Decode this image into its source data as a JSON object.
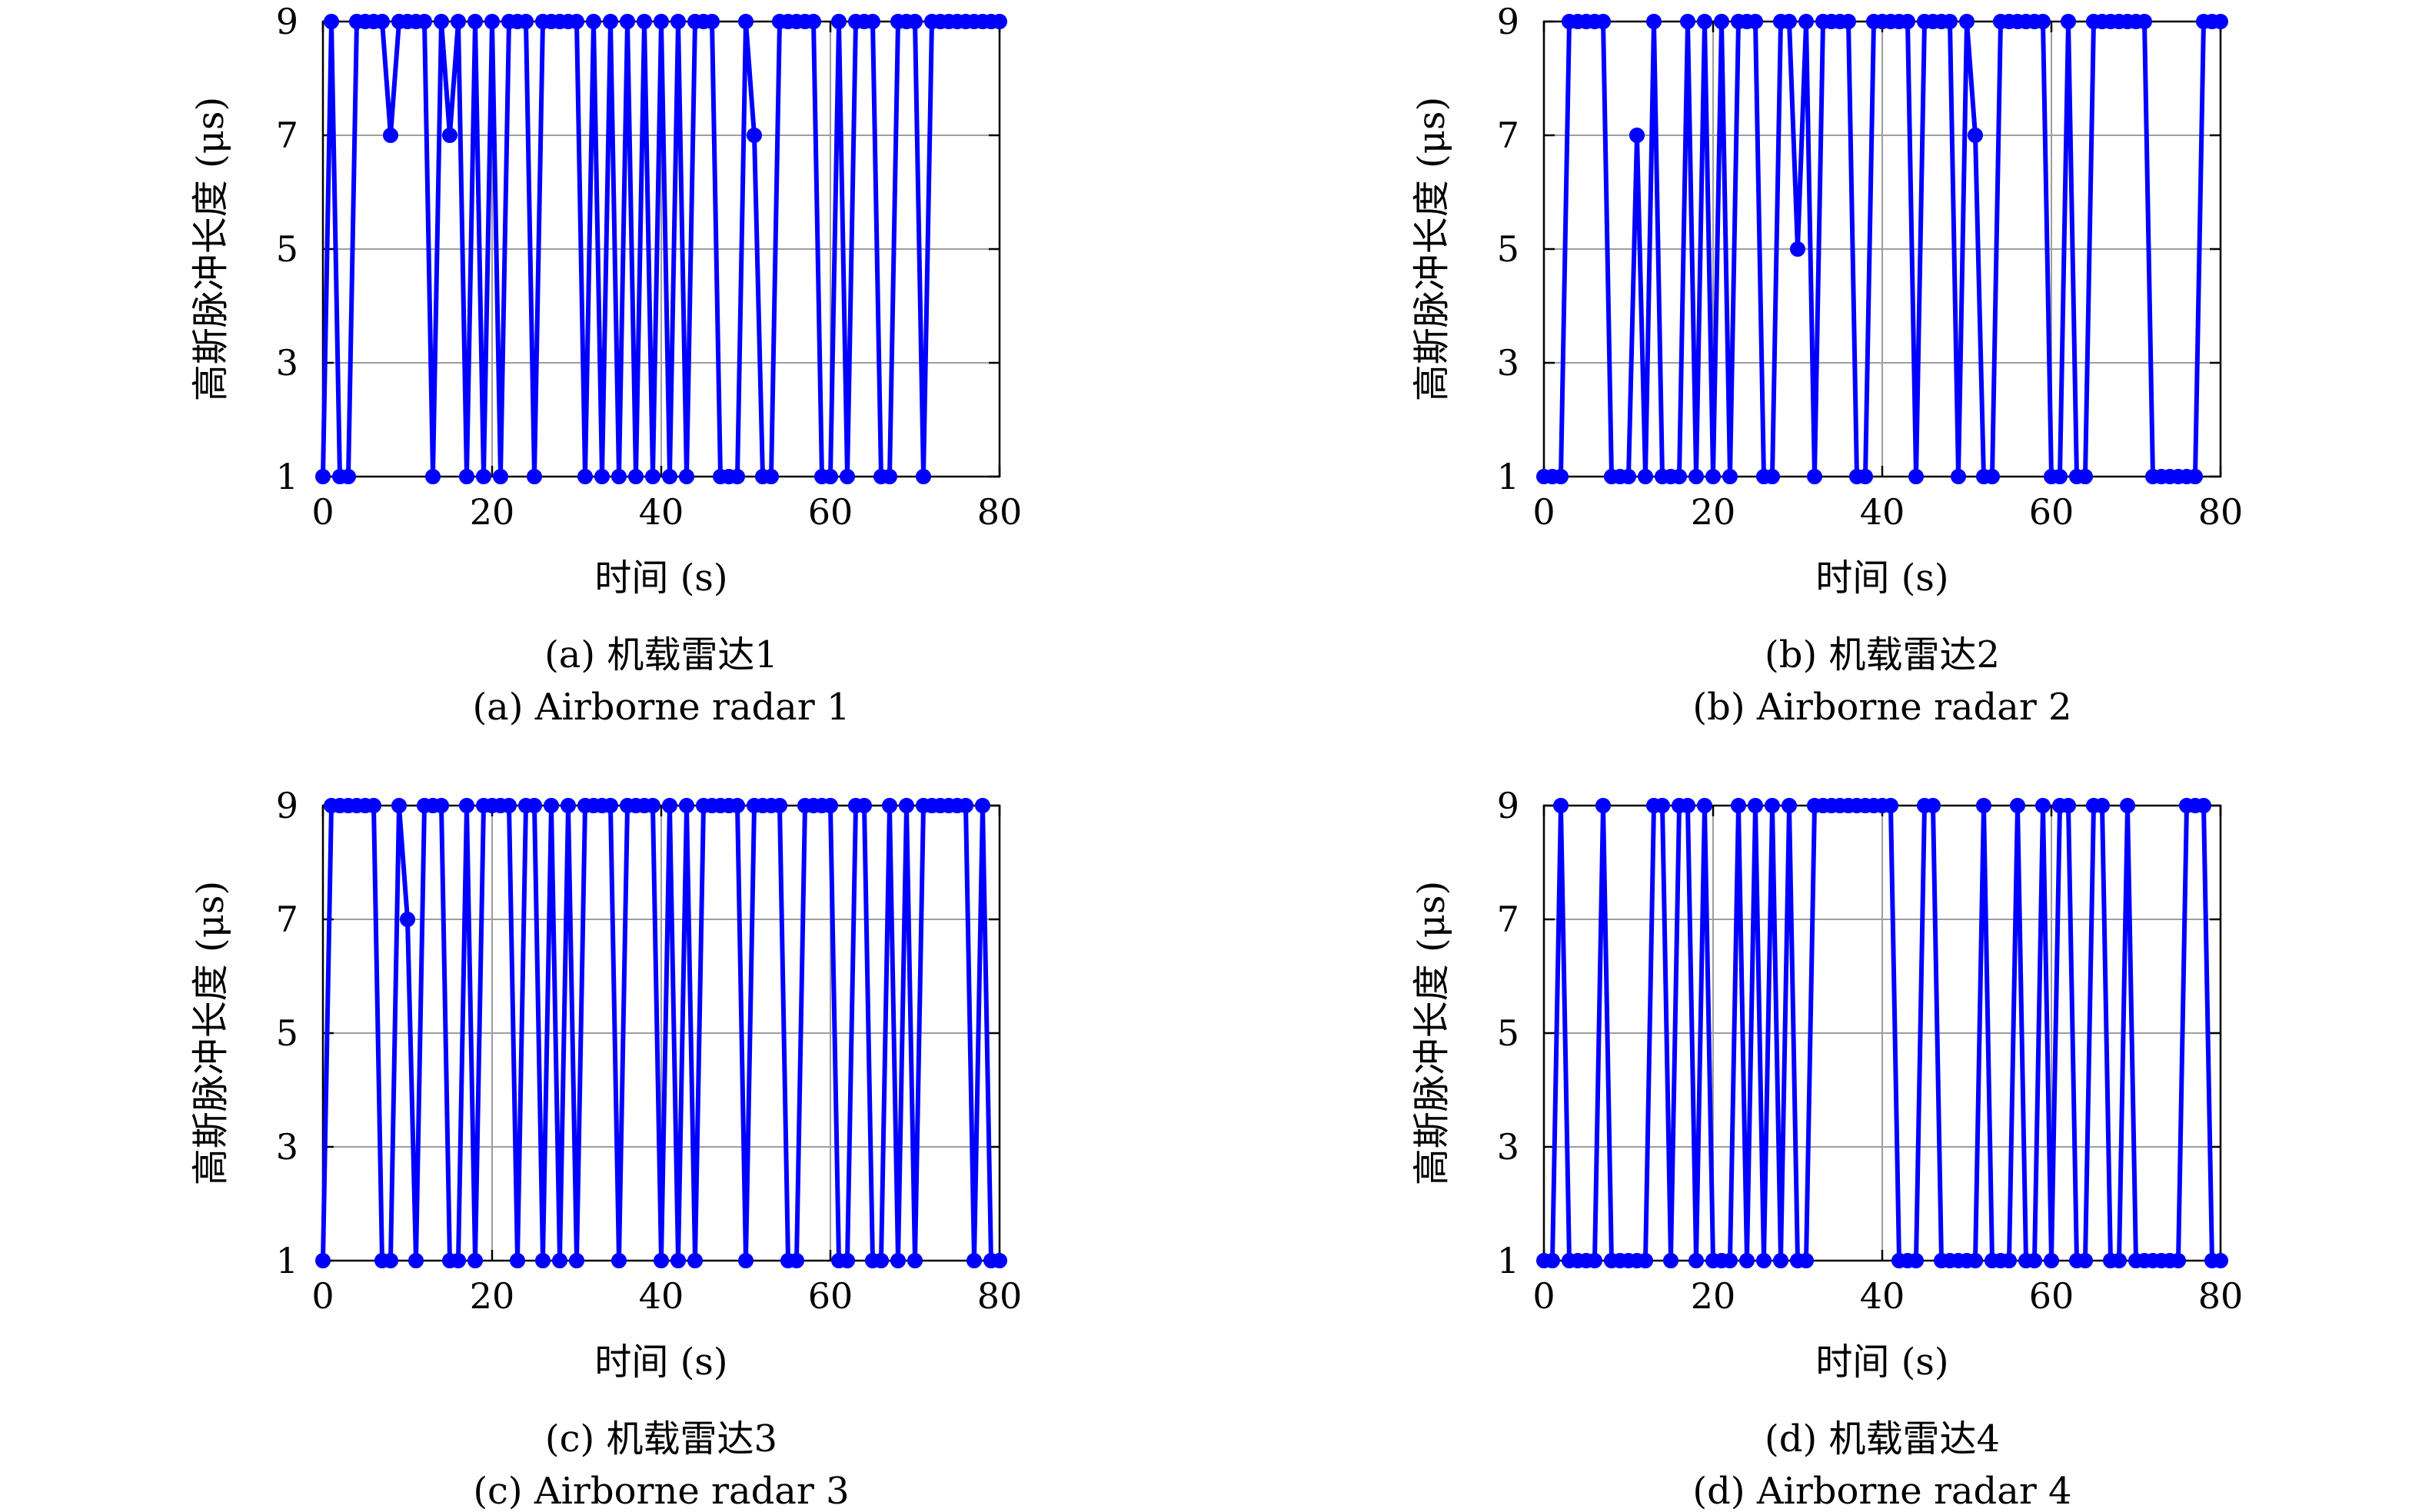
{
  "chart_data": [
    {
      "type": "line",
      "caption_cn": "(a) 机载雷达1",
      "caption_en": "(a) Airborne radar 1",
      "xlabel": "时间 (s)",
      "ylabel": "高斯脉冲长度 (μs)",
      "xlim": [
        0,
        80
      ],
      "ylim": [
        1,
        9
      ],
      "xticks": [
        "0",
        "20",
        "40",
        "60",
        "80"
      ],
      "yticks": [
        "1",
        "3",
        "5",
        "7",
        "9"
      ],
      "grid": true,
      "series": [
        {
          "color": "#0000ff",
          "x": [
            0,
            1,
            2,
            3,
            4,
            5,
            6,
            7,
            8,
            9,
            10,
            11,
            12,
            13,
            14,
            15,
            16,
            17,
            18,
            19,
            20,
            21,
            22,
            23,
            24,
            25,
            26,
            27,
            28,
            29,
            30,
            31,
            32,
            33,
            34,
            35,
            36,
            37,
            38,
            39,
            40,
            41,
            42,
            43,
            44,
            45,
            46,
            47,
            48,
            49,
            50,
            51,
            52,
            53,
            54,
            55,
            56,
            57,
            58,
            59,
            60,
            61,
            62,
            63,
            64,
            65,
            66,
            67,
            68,
            69,
            70,
            71,
            72,
            73,
            74,
            75,
            76,
            77,
            78,
            79,
            80
          ],
          "y": [
            1,
            9,
            1,
            1,
            9,
            9,
            9,
            9,
            7,
            9,
            9,
            9,
            9,
            1,
            9,
            7,
            9,
            1,
            9,
            1,
            9,
            1,
            9,
            9,
            9,
            1,
            9,
            9,
            9,
            9,
            9,
            1,
            9,
            1,
            9,
            1,
            9,
            1,
            9,
            1,
            9,
            1,
            9,
            1,
            9,
            9,
            9,
            1,
            1,
            1,
            9,
            7,
            1,
            1,
            9,
            9,
            9,
            9,
            9,
            1,
            1,
            9,
            1,
            9,
            9,
            9,
            1,
            1,
            9,
            9,
            9,
            1,
            9,
            9,
            9,
            9,
            9,
            9,
            9,
            9,
            9
          ]
        }
      ]
    },
    {
      "type": "line",
      "caption_cn": "(b) 机载雷达2",
      "caption_en": "(b) Airborne radar 2",
      "xlabel": "时间 (s)",
      "ylabel": "高斯脉冲长度 (μs)",
      "xlim": [
        0,
        80
      ],
      "ylim": [
        1,
        9
      ],
      "xticks": [
        "0",
        "20",
        "40",
        "60",
        "80"
      ],
      "yticks": [
        "1",
        "3",
        "5",
        "7",
        "9"
      ],
      "grid": true,
      "series": [
        {
          "color": "#0000ff",
          "x": [
            0,
            1,
            2,
            3,
            4,
            5,
            6,
            7,
            8,
            9,
            10,
            11,
            12,
            13,
            14,
            15,
            16,
            17,
            18,
            19,
            20,
            21,
            22,
            23,
            24,
            25,
            26,
            27,
            28,
            29,
            30,
            31,
            32,
            33,
            34,
            35,
            36,
            37,
            38,
            39,
            40,
            41,
            42,
            43,
            44,
            45,
            46,
            47,
            48,
            49,
            50,
            51,
            52,
            53,
            54,
            55,
            56,
            57,
            58,
            59,
            60,
            61,
            62,
            63,
            64,
            65,
            66,
            67,
            68,
            69,
            70,
            71,
            72,
            73,
            74,
            75,
            76,
            77,
            78,
            79,
            80
          ],
          "y": [
            1,
            1,
            1,
            9,
            9,
            9,
            9,
            9,
            1,
            1,
            1,
            7,
            1,
            9,
            1,
            1,
            1,
            9,
            1,
            9,
            1,
            9,
            1,
            9,
            9,
            9,
            1,
            1,
            9,
            9,
            5,
            9,
            1,
            9,
            9,
            9,
            9,
            1,
            1,
            9,
            9,
            9,
            9,
            9,
            1,
            9,
            9,
            9,
            9,
            1,
            9,
            7,
            1,
            1,
            9,
            9,
            9,
            9,
            9,
            9,
            1,
            1,
            9,
            1,
            1,
            9,
            9,
            9,
            9,
            9,
            9,
            9,
            1,
            1,
            1,
            1,
            1,
            1,
            9,
            9,
            9
          ]
        }
      ]
    },
    {
      "type": "line",
      "caption_cn": "(c) 机载雷达3",
      "caption_en": "(c) Airborne radar 3",
      "xlabel": "时间 (s)",
      "ylabel": "高斯脉冲长度 (μs)",
      "xlim": [
        0,
        80
      ],
      "ylim": [
        1,
        9
      ],
      "xticks": [
        "0",
        "20",
        "40",
        "60",
        "80"
      ],
      "yticks": [
        "1",
        "3",
        "5",
        "7",
        "9"
      ],
      "grid": true,
      "series": [
        {
          "color": "#0000ff",
          "x": [
            0,
            1,
            2,
            3,
            4,
            5,
            6,
            7,
            8,
            9,
            10,
            11,
            12,
            13,
            14,
            15,
            16,
            17,
            18,
            19,
            20,
            21,
            22,
            23,
            24,
            25,
            26,
            27,
            28,
            29,
            30,
            31,
            32,
            33,
            34,
            35,
            36,
            37,
            38,
            39,
            40,
            41,
            42,
            43,
            44,
            45,
            46,
            47,
            48,
            49,
            50,
            51,
            52,
            53,
            54,
            55,
            56,
            57,
            58,
            59,
            60,
            61,
            62,
            63,
            64,
            65,
            66,
            67,
            68,
            69,
            70,
            71,
            72,
            73,
            74,
            75,
            76,
            77,
            78,
            79,
            80
          ],
          "y": [
            1,
            9,
            9,
            9,
            9,
            9,
            9,
            1,
            1,
            9,
            7,
            1,
            9,
            9,
            9,
            1,
            1,
            9,
            1,
            9,
            9,
            9,
            9,
            1,
            9,
            9,
            1,
            9,
            1,
            9,
            1,
            9,
            9,
            9,
            9,
            1,
            9,
            9,
            9,
            9,
            1,
            9,
            1,
            9,
            1,
            9,
            9,
            9,
            9,
            9,
            1,
            9,
            9,
            9,
            9,
            1,
            1,
            9,
            9,
            9,
            9,
            1,
            1,
            9,
            9,
            1,
            1,
            9,
            1,
            9,
            1,
            9,
            9,
            9,
            9,
            9,
            9,
            1,
            9,
            1,
            1
          ]
        }
      ]
    },
    {
      "type": "line",
      "caption_cn": "(d) 机载雷达4",
      "caption_en": "(d) Airborne radar 4",
      "xlabel": "时间 (s)",
      "ylabel": "高斯脉冲长度 (μs)",
      "xlim": [
        0,
        80
      ],
      "ylim": [
        1,
        9
      ],
      "xticks": [
        "0",
        "20",
        "40",
        "60",
        "80"
      ],
      "yticks": [
        "1",
        "3",
        "5",
        "7",
        "9"
      ],
      "grid": true,
      "series": [
        {
          "color": "#0000ff",
          "x": [
            0,
            1,
            2,
            3,
            4,
            5,
            6,
            7,
            8,
            9,
            10,
            11,
            12,
            13,
            14,
            15,
            16,
            17,
            18,
            19,
            20,
            21,
            22,
            23,
            24,
            25,
            26,
            27,
            28,
            29,
            30,
            31,
            32,
            33,
            34,
            35,
            36,
            37,
            38,
            39,
            40,
            41,
            42,
            43,
            44,
            45,
            46,
            47,
            48,
            49,
            50,
            51,
            52,
            53,
            54,
            55,
            56,
            57,
            58,
            59,
            60,
            61,
            62,
            63,
            64,
            65,
            66,
            67,
            68,
            69,
            70,
            71,
            72,
            73,
            74,
            75,
            76,
            77,
            78,
            79,
            80
          ],
          "y": [
            1,
            1,
            9,
            1,
            1,
            1,
            1,
            9,
            1,
            1,
            1,
            1,
            1,
            9,
            9,
            1,
            9,
            9,
            1,
            9,
            1,
            1,
            1,
            9,
            1,
            9,
            1,
            9,
            1,
            9,
            1,
            1,
            9,
            9,
            9,
            9,
            9,
            9,
            9,
            9,
            9,
            9,
            1,
            1,
            1,
            9,
            9,
            1,
            1,
            1,
            1,
            1,
            9,
            1,
            1,
            1,
            9,
            1,
            1,
            9,
            1,
            9,
            9,
            1,
            1,
            9,
            9,
            1,
            1,
            9,
            1,
            1,
            1,
            1,
            1,
            1,
            9,
            9,
            9,
            1,
            1
          ]
        }
      ]
    }
  ]
}
